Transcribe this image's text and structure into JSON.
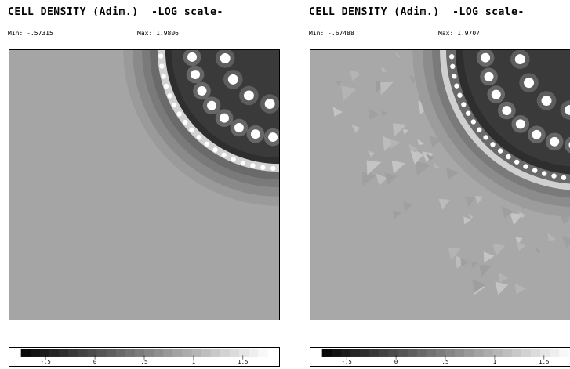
{
  "panels": [
    {
      "title": "CELL DENSITY (Adim.)  -LOG scale-",
      "min_label": "Min: -.57315",
      "max_label": "Max: 1.9806"
    },
    {
      "title": "CELL DENSITY (Adim.)  -LOG scale-",
      "min_label": "Min: -.67488",
      "max_label": "Max: 1.9707"
    }
  ],
  "colorbar": {
    "tick_labels": [
      "-.5",
      "0",
      ".5",
      "1",
      "1.5"
    ],
    "tick_values": [
      -0.5,
      0,
      0.5,
      1,
      1.5
    ],
    "range": [
      -0.75,
      1.75
    ],
    "scale": "grayscale, black = low, white = high"
  },
  "colors": {
    "background_field": "#a5a5a5",
    "core": "#000000"
  }
}
